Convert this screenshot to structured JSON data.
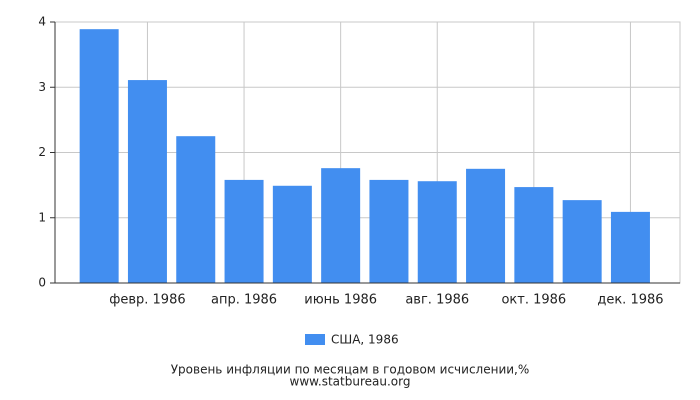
{
  "chart_data": {
    "type": "bar",
    "title": "Уровень инфляции по месяцам в годовом исчислении,%",
    "subtitle": "www.statbureau.org",
    "categories": [
      null,
      "февр. 1986",
      null,
      "апр. 1986",
      null,
      "июнь 1986",
      null,
      "авг. 1986",
      null,
      "окт. 1986",
      null,
      "дек. 1986"
    ],
    "series": [
      {
        "name": "США, 1986",
        "color": "#428ef0",
        "values": [
          3.89,
          3.11,
          2.25,
          1.58,
          1.49,
          1.76,
          1.58,
          1.56,
          1.75,
          1.47,
          1.27,
          1.09
        ]
      }
    ],
    "ylim": [
      0,
      4
    ],
    "yticks": [
      0,
      1,
      2,
      3,
      4
    ],
    "grid": true
  }
}
